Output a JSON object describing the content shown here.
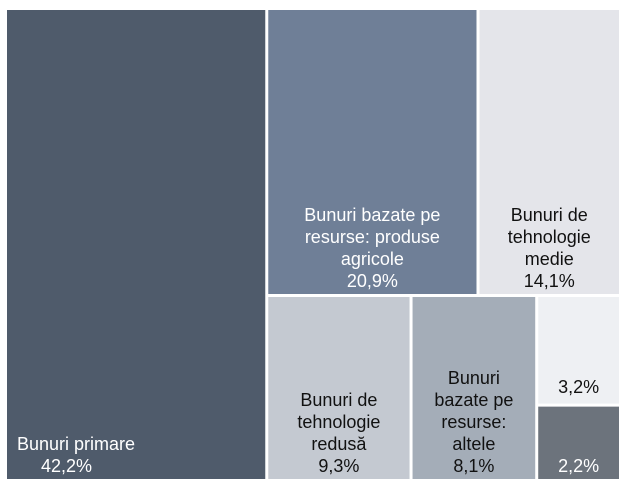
{
  "chart_data": {
    "type": "treemap",
    "categories": [
      "Bunuri primare",
      "Bunuri bazate pe resurse: produse agricole",
      "Bunuri de tehnologie medie",
      "Bunuri de tehnologie redusă",
      "Bunuri bazate pe resurse: altele",
      null,
      null
    ],
    "values": [
      42.2,
      20.9,
      14.1,
      9.3,
      8.1,
      3.2,
      2.2
    ],
    "value_labels": [
      "42,2%",
      "20,9%",
      "14,1%",
      "9,3%",
      "8,1%",
      "3,2%",
      "2,2%"
    ],
    "colors": [
      "#4f5b6b",
      "#6f7f97",
      "#e4e5ea",
      "#c4c9d1",
      "#a4adb8",
      "#eef0f3",
      "#6c737c"
    ]
  }
}
